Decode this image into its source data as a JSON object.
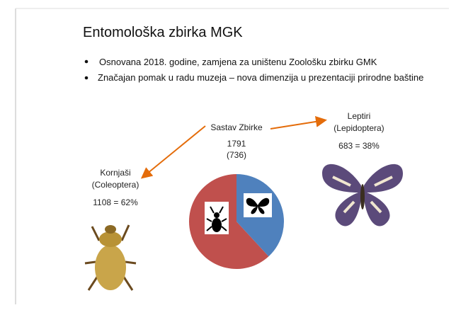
{
  "slide": {
    "title": "Entomološka zbirka MGK",
    "bullets": [
      "Osnovana 2018. godine, zamjena za uništenu Zoološku zbirku GMK",
      "Značajan pomak u radu muzeja – nova dimenzija u prezentaciji prirodne baštine"
    ]
  },
  "chart_data": {
    "type": "pie",
    "title": "Sastav Zbirke",
    "total": 1791,
    "total_note": "(736)",
    "categories": [
      "Kornjaši",
      "Leptiri"
    ],
    "subcategories": [
      "(Coleoptera)",
      "(Lepidoptera)"
    ],
    "values": [
      1108,
      683
    ],
    "value_labels": [
      "1108 = 62%",
      "683 = 38%"
    ],
    "colors": [
      "#c0504d",
      "#4f81bd"
    ]
  }
}
